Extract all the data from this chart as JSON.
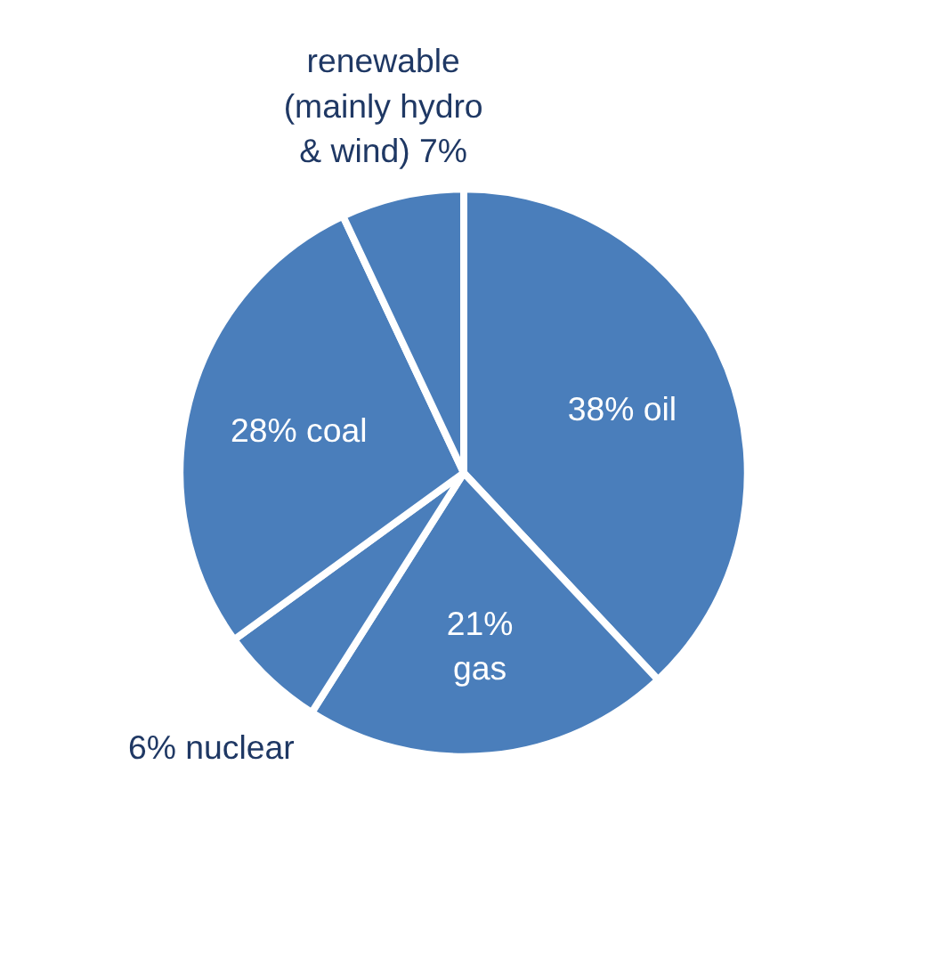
{
  "chart_data": {
    "type": "pie",
    "categories": [
      null,
      null,
      null,
      null,
      null
    ],
    "values": [
      38,
      21,
      6,
      28,
      7
    ],
    "colors": [
      "#4a7ebb",
      "#4a7ebb",
      "#4a7ebb",
      "#4a7ebb",
      "#4a7ebb"
    ],
    "value_labels": [
      "38% oil",
      "21%\ngas",
      "6% nuclear",
      "28% coal",
      "renewable\n(mainly hydro\n& wind) 7%"
    ]
  }
}
